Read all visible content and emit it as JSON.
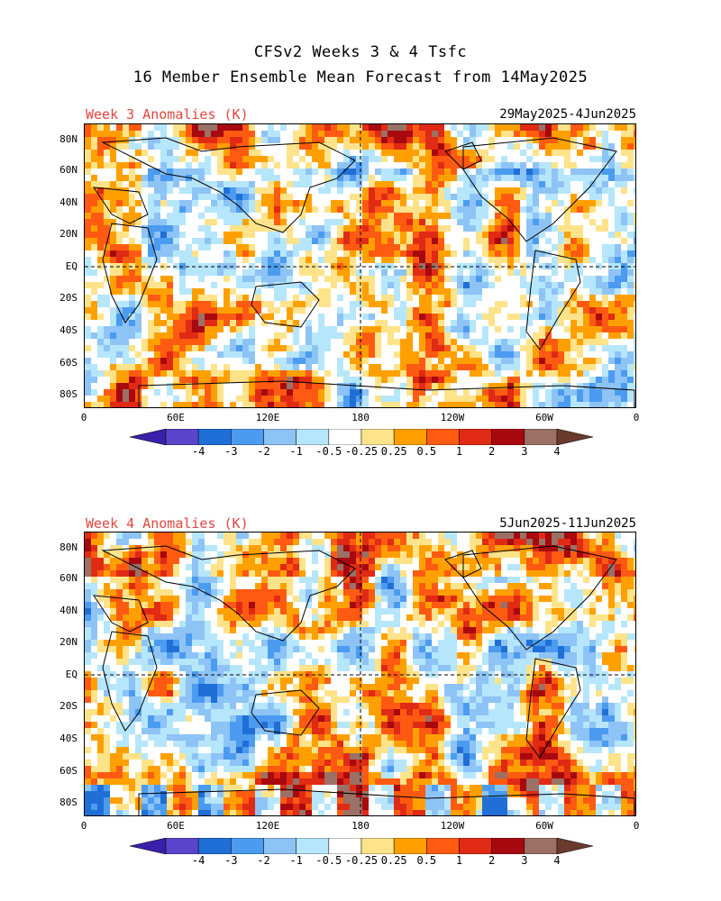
{
  "header": {
    "title_line1": "CFSv2 Weeks 3 & 4 Tsfc",
    "title_line2": "16 Member Ensemble Mean Forecast from 14May2025"
  },
  "panels": [
    {
      "label": "Week 3 Anomalies (K)",
      "dates": "29May2025-4Jun2025"
    },
    {
      "label": "Week 4 Anomalies (K)",
      "dates": "5Jun2025-11Jun2025"
    }
  ],
  "axes": {
    "lat_labels": [
      "80N",
      "60N",
      "40N",
      "20N",
      "EQ",
      "20S",
      "40S",
      "60S",
      "80S"
    ],
    "lon_labels": [
      "0",
      "60E",
      "120E",
      "180",
      "120W",
      "60W",
      "0"
    ]
  },
  "colorbar": {
    "labels": [
      "-4",
      "-3",
      "-2",
      "-1",
      "-0.5",
      "-0.25",
      "0.25",
      "0.5",
      "1",
      "2",
      "3",
      "4"
    ],
    "colors": [
      "#3a1fa8",
      "#5a44c9",
      "#1f6fd6",
      "#4b9bf0",
      "#8ec3f6",
      "#b6e6fb",
      "#ffffff",
      "#ffe38a",
      "#ffa000",
      "#ff5a12",
      "#e02a14",
      "#a8090f",
      "#9b7065",
      "#6a3a2d"
    ]
  }
}
